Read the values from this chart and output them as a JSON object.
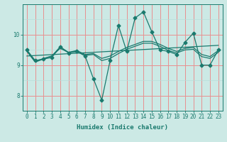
{
  "xlabel": "Humidex (Indice chaleur)",
  "bg_color": "#cce9e5",
  "line_color": "#1a7a6e",
  "grid_color_red": "#e89090",
  "grid_color_cyan": "#b8deda",
  "xlim": [
    -0.5,
    23.5
  ],
  "ylim": [
    7.5,
    11.0
  ],
  "yticks": [
    8,
    9,
    10
  ],
  "xticks": [
    0,
    1,
    2,
    3,
    4,
    5,
    6,
    7,
    8,
    9,
    10,
    11,
    12,
    13,
    14,
    15,
    16,
    17,
    18,
    19,
    20,
    21,
    22,
    23
  ],
  "series1_x": [
    0,
    1,
    2,
    3,
    4,
    5,
    6,
    7,
    8,
    9,
    10,
    11,
    12,
    13,
    14,
    15,
    16,
    17,
    18,
    19,
    20,
    21,
    22,
    23
  ],
  "series1_y": [
    9.5,
    9.15,
    9.2,
    9.25,
    9.6,
    9.4,
    9.45,
    9.3,
    8.55,
    7.85,
    9.15,
    10.3,
    9.45,
    10.55,
    10.75,
    10.1,
    9.5,
    9.45,
    9.35,
    9.75,
    10.05,
    9.0,
    9.0,
    9.5
  ],
  "series2_x": [
    0,
    1,
    2,
    3,
    4,
    5,
    6,
    7,
    8,
    9,
    10,
    11,
    12,
    13,
    14,
    15,
    16,
    17,
    18,
    19,
    20,
    21,
    22,
    23
  ],
  "series2_y": [
    9.48,
    9.12,
    9.22,
    9.3,
    9.55,
    9.42,
    9.48,
    9.35,
    9.38,
    9.22,
    9.3,
    9.45,
    9.58,
    9.68,
    9.78,
    9.78,
    9.68,
    9.55,
    9.45,
    9.55,
    9.58,
    9.35,
    9.28,
    9.48
  ],
  "series3_x": [
    0,
    1,
    2,
    3,
    4,
    5,
    6,
    7,
    8,
    9,
    10,
    11,
    12,
    13,
    14,
    15,
    16,
    17,
    18,
    19,
    20,
    21,
    22,
    23
  ],
  "series3_y": [
    9.45,
    9.1,
    9.2,
    9.3,
    9.6,
    9.42,
    9.45,
    9.32,
    9.35,
    9.15,
    9.22,
    9.38,
    9.52,
    9.62,
    9.72,
    9.72,
    9.62,
    9.48,
    9.4,
    9.5,
    9.52,
    9.28,
    9.22,
    9.42
  ],
  "trend_x": [
    0,
    23
  ],
  "trend_y": [
    9.3,
    9.65
  ],
  "marker_size": 2.5,
  "linewidth": 0.9
}
